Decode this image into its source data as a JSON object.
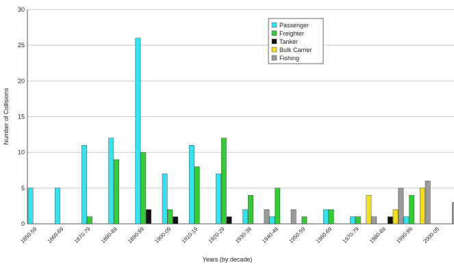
{
  "chart_data": {
    "type": "bar",
    "x_label": "Years (by decade)",
    "y_label": "Number of Collisions",
    "categories": [
      "1850-59",
      "1860-69",
      "1870-79",
      "1880-89",
      "1890-99",
      "1900-09",
      "1910-19",
      "1920-29",
      "1930-39",
      "1940-49",
      "1950-59",
      "1960-69",
      "1970-79",
      "1980-89",
      "1990-99",
      "2000-05"
    ],
    "series": [
      {
        "name": "Passenger",
        "color": "#33e3f2",
        "values": [
          5,
          5,
          11,
          12,
          26,
          7,
          11,
          7,
          2,
          1,
          0,
          2,
          1,
          0,
          1,
          0
        ]
      },
      {
        "name": "Freighter",
        "color": "#33cc33",
        "values": [
          0,
          0,
          1,
          9,
          10,
          2,
          8,
          12,
          4,
          5,
          1,
          2,
          1,
          0,
          4,
          0
        ]
      },
      {
        "name": "Tanker",
        "color": "#111111",
        "values": [
          0,
          0,
          0,
          0,
          2,
          1,
          0,
          1,
          0,
          0,
          0,
          0,
          0,
          1,
          0,
          0
        ]
      },
      {
        "name": "Bulk Carrier",
        "color": "#f2e020",
        "values": [
          0,
          0,
          0,
          0,
          0,
          0,
          0,
          0,
          0,
          0,
          0,
          0,
          4,
          2,
          5,
          0
        ]
      },
      {
        "name": "Fishing",
        "color": "#9a9a9a",
        "values": [
          0,
          0,
          0,
          0,
          0,
          0,
          0,
          0,
          2,
          2,
          0,
          0,
          1,
          5,
          6,
          3
        ]
      }
    ],
    "ylim": [
      0,
      30
    ],
    "yticks": [
      0,
      5,
      10,
      15,
      20,
      25,
      30
    ],
    "grid": true,
    "legend": "top-center"
  }
}
